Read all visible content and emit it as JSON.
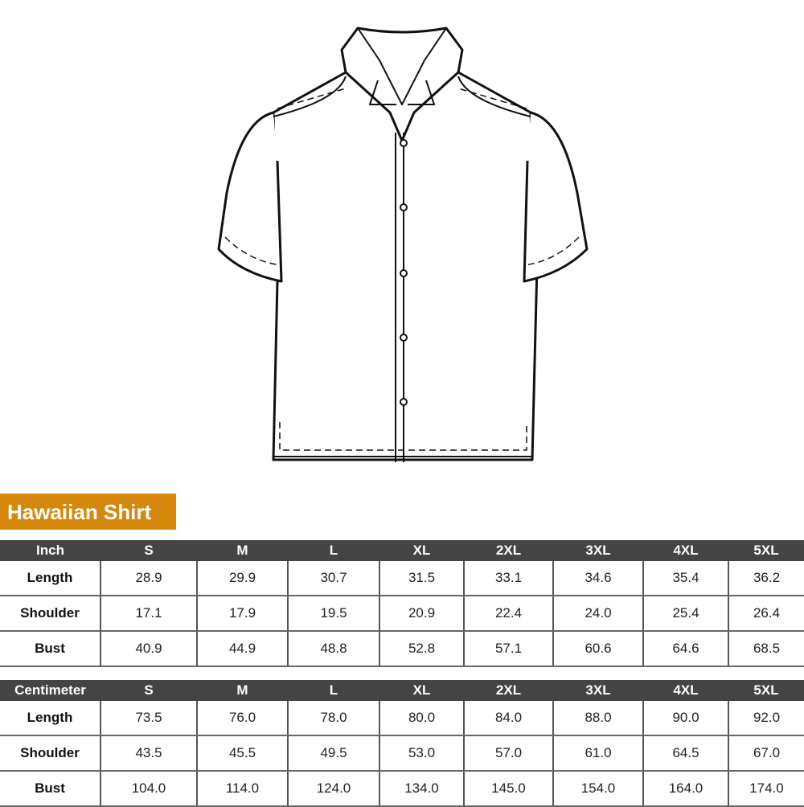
{
  "product_title": "Hawaiian Shirt",
  "accent_color": "#d5880b",
  "header_color": "#444444",
  "image": "shirt-line-drawing",
  "sizes": [
    "S",
    "M",
    "L",
    "XL",
    "2XL",
    "3XL",
    "4XL",
    "5XL"
  ],
  "inch_table": {
    "unit": "Inch",
    "rows": [
      {
        "label": "Length",
        "values": [
          "28.9",
          "29.9",
          "30.7",
          "31.5",
          "33.1",
          "34.6",
          "35.4",
          "36.2"
        ]
      },
      {
        "label": "Shoulder",
        "values": [
          "17.1",
          "17.9",
          "19.5",
          "20.9",
          "22.4",
          "24.0",
          "25.4",
          "26.4"
        ]
      },
      {
        "label": "Bust",
        "values": [
          "40.9",
          "44.9",
          "48.8",
          "52.8",
          "57.1",
          "60.6",
          "64.6",
          "68.5"
        ]
      }
    ]
  },
  "cm_table": {
    "unit": "Centimeter",
    "rows": [
      {
        "label": "Length",
        "values": [
          "73.5",
          "76.0",
          "78.0",
          "80.0",
          "84.0",
          "88.0",
          "90.0",
          "92.0"
        ]
      },
      {
        "label": "Shoulder",
        "values": [
          "43.5",
          "45.5",
          "49.5",
          "53.0",
          "57.0",
          "61.0",
          "64.5",
          "67.0"
        ]
      },
      {
        "label": "Bust",
        "values": [
          "104.0",
          "114.0",
          "124.0",
          "134.0",
          "145.0",
          "154.0",
          "164.0",
          "174.0"
        ]
      }
    ]
  }
}
